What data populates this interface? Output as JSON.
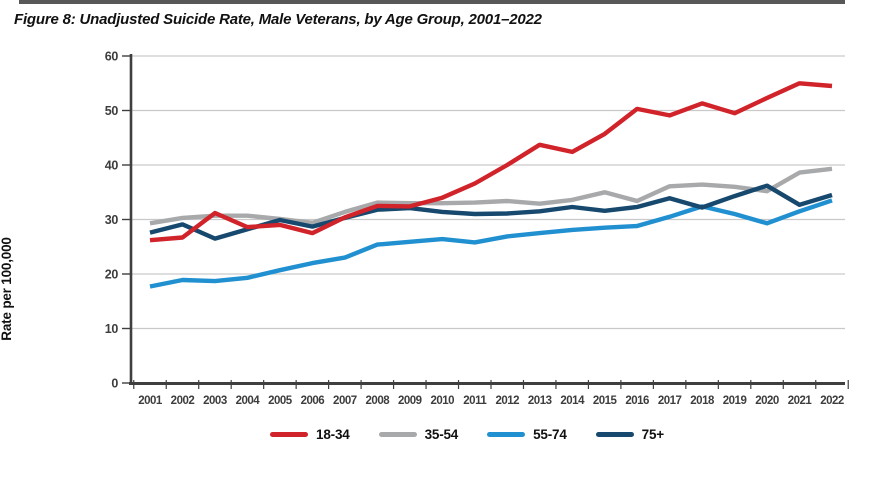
{
  "title": "Figure 8: Unadjusted Suicide Rate, Male Veterans, by Age Group, 2001–2022",
  "chart_data": {
    "type": "line",
    "title": "Figure 8: Unadjusted Suicide Rate, Male Veterans, by Age Group, 2001–2022",
    "xlabel": "",
    "ylabel": "Rate per 100,000",
    "ylim": [
      0,
      60
    ],
    "ytick_interval": 10,
    "grid": true,
    "legend_position": "bottom",
    "x": [
      2001,
      2002,
      2003,
      2004,
      2005,
      2006,
      2007,
      2008,
      2009,
      2010,
      2011,
      2012,
      2013,
      2014,
      2015,
      2016,
      2017,
      2018,
      2019,
      2020,
      2021,
      2022
    ],
    "series": [
      {
        "name": "18-34",
        "color": "#d1232a",
        "values": [
          26.2,
          26.7,
          31.2,
          28.6,
          29.0,
          27.5,
          30.4,
          32.5,
          32.4,
          34.0,
          36.6,
          40.0,
          43.7,
          42.4,
          45.7,
          50.3,
          49.1,
          51.3,
          49.5,
          52.3,
          55.0,
          54.5
        ]
      },
      {
        "name": "35-54",
        "color": "#a8a9ab",
        "values": [
          29.3,
          30.3,
          30.7,
          30.7,
          30.1,
          29.4,
          31.4,
          33.1,
          33.0,
          33.0,
          33.1,
          33.4,
          32.9,
          33.6,
          35.0,
          33.4,
          36.1,
          36.4,
          36.0,
          35.2,
          38.6,
          39.3
        ]
      },
      {
        "name": "55-74",
        "color": "#2190d0",
        "values": [
          17.7,
          18.9,
          18.7,
          19.3,
          20.7,
          22.0,
          23.0,
          25.4,
          25.9,
          26.4,
          25.8,
          26.9,
          27.5,
          28.1,
          28.5,
          28.8,
          30.5,
          32.4,
          31.0,
          29.3,
          31.5,
          33.5
        ]
      },
      {
        "name": "75+",
        "color": "#17486e",
        "values": [
          27.6,
          29.1,
          26.5,
          28.2,
          29.9,
          28.7,
          30.3,
          31.8,
          32.1,
          31.4,
          31.0,
          31.1,
          31.5,
          32.3,
          31.6,
          32.3,
          33.9,
          32.2,
          34.3,
          36.2,
          32.7,
          34.5
        ]
      }
    ],
    "draw_order": [
      1,
      2,
      3,
      0
    ],
    "y_tick_labels": [
      "0",
      "10",
      "20",
      "30",
      "40",
      "50",
      "60"
    ]
  },
  "colors": {
    "axis": "#3f3f3f",
    "gridline": "#c9c9c9",
    "tick_label": "#3d3d3d"
  }
}
